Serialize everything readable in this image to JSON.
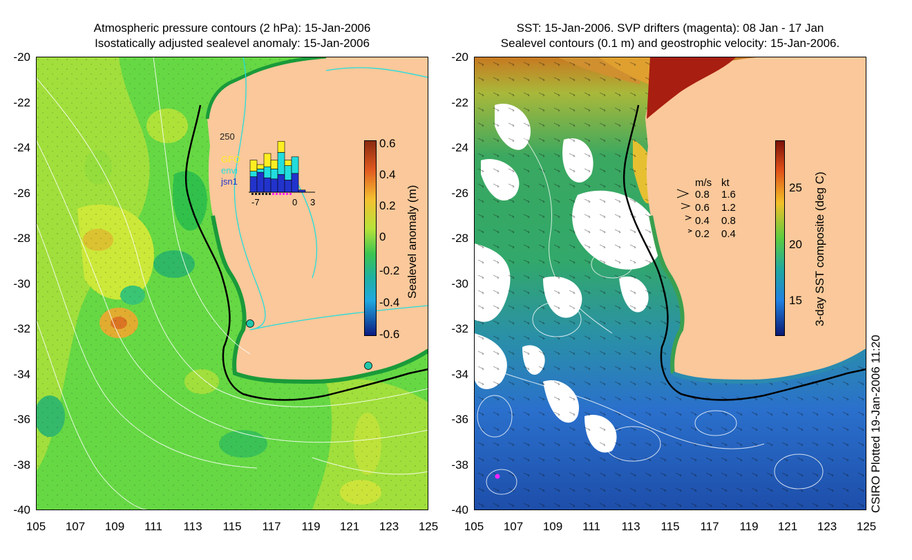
{
  "left_panel": {
    "title_line1": "Atmospheric pressure contours (2 hPa): 15-Jan-2006",
    "title_line2": "Isostatically adjusted sealevel anomaly: 15-Jan-2006",
    "colorbar_label": "Sealevel anomaly (m)",
    "colorbar_ticks": [
      "0.6",
      "0.4",
      "0.2",
      "0",
      "-0.2",
      "-0.4",
      "-0.6"
    ],
    "inset": {
      "ymax_label": "250",
      "legend": [
        "GFO",
        "envi",
        "jsn1"
      ],
      "legend_colors": [
        "#ffee22",
        "#22dddd",
        "#2233cc"
      ],
      "x_labels": [
        "-7",
        "0",
        "3"
      ],
      "bars_gfo": [
        50,
        20,
        60,
        40,
        50,
        25,
        0,
        0
      ],
      "bars_envi": [
        25,
        15,
        50,
        45,
        100,
        65,
        75,
        0
      ],
      "bars_jsn1": [
        70,
        90,
        65,
        60,
        80,
        55,
        85,
        10
      ]
    }
  },
  "right_panel": {
    "title_line1": "SST: 15-Jan-2006. SVP drifters (magenta): 08 Jan - 17 Jan",
    "title_line2": "Sealevel contours (0.1 m) and geostrophic velocity: 15-Jan-2006.",
    "colorbar_label": "3-day SST composite (deg C)",
    "colorbar_ticks": [
      "25",
      "20",
      "15"
    ],
    "velocity_legend": {
      "header_ms": "m/s",
      "header_kt": "kt",
      "rows": [
        {
          "ms": "0.8",
          "kt": "1.6"
        },
        {
          "ms": "0.6",
          "kt": "1.2"
        },
        {
          "ms": "0.4",
          "kt": "0.8"
        },
        {
          "ms": "0.2",
          "kt": "0.4"
        }
      ]
    }
  },
  "y_ticks": [
    "-20",
    "-22",
    "-24",
    "-26",
    "-28",
    "-30",
    "-32",
    "-34",
    "-36",
    "-38",
    "-40"
  ],
  "x_ticks": [
    "105",
    "107",
    "109",
    "111",
    "113",
    "115",
    "117",
    "119",
    "121",
    "123",
    "125"
  ],
  "credit": "CSIRO Plotted 19-Jan-2006 11:20",
  "colors": {
    "land": "#fac89a",
    "anomaly_green": "#44cc44",
    "anomaly_light": "#aee63a",
    "sst_warm": "#cc2200",
    "sst_cool": "#2266cc",
    "contour_cyan": "#22dddd",
    "drifter": "#ff22ff"
  }
}
